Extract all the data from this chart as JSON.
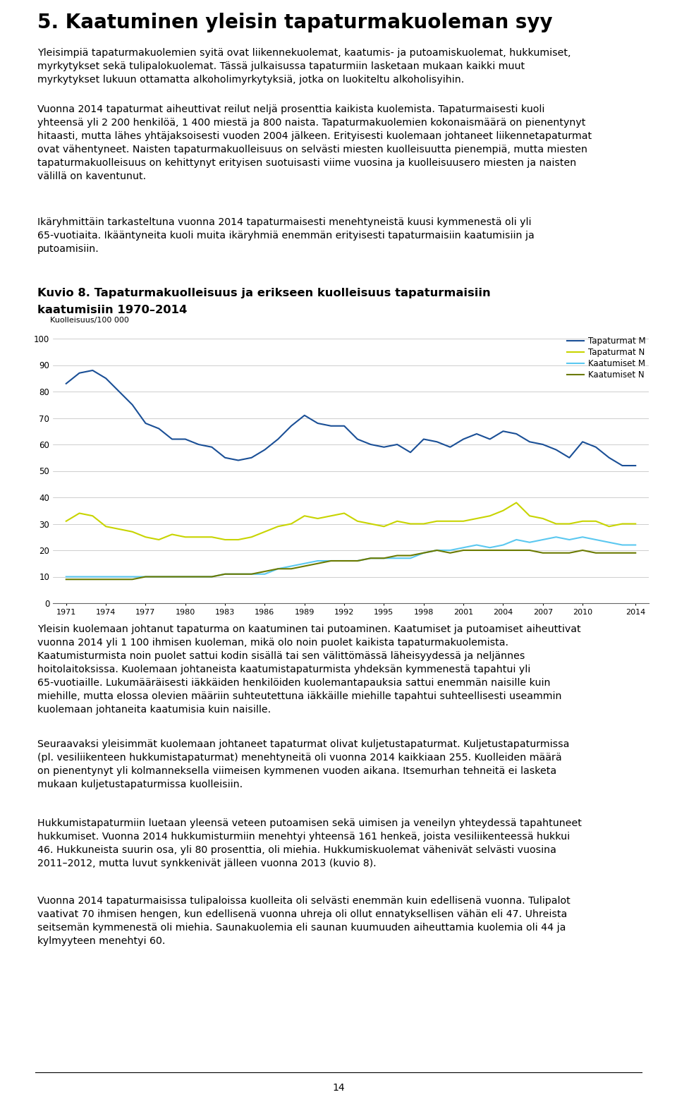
{
  "title_heading": "5. Kaatuminen yleisin tapaturmakuoleman syy",
  "para1": "Yleisimpiä tapaturmakuolemien syitä ovat liikennekuolemat, kaatumis- ja putoamiskuolemat, hukkumiset,\nmyrkytykset sekä tulipalokuolemat. Tässä julkaisussa tapaturmiin lasketaan mukaan kaikki muut\nmyrkytykset lukuun ottamatta alkoholimyrkytyksiä, jotka on luokiteltu alkoholisyihin.",
  "para2": "Vuonna 2014 tapaturmat aiheuttivat reilut neljä prosenttia kaikista kuolemista. Tapaturmaisesti kuoli\nyhteensä yli 2 200 henkilöä, 1 400 miestä ja 800 naista. Tapaturmakuolemien kokonaismäärä on pienentynyt\nhitaasti, mutta lähes yhtäjaksoisesti vuoden 2004 jälkeen. Erityisesti kuolemaan johtaneet liikennetapaturmat\novat vähentyneet. Naisten tapaturmakuolleisuus on selvästi miesten kuolleisuutta pienempiä, mutta miesten\ntapaturmakuolleisuus on kehittynyt erityisen suotuisasti viime vuosina ja kuolleisuusero miesten ja naisten\nvälillä on kaventunut.",
  "para3": "Ikäryhmittäin tarkasteltuna vuonna 2014 tapaturmaisesti menehtyneistä kuusi kymmenestä oli yli\n65-vuotiaita. Ikääntyneita kuoli muita ikäryhmiä enemmän erityisesti tapaturmaisiin kaatumisiin ja\nputoamisiin.",
  "fig_title_line1": "Kuvio 8. Tapaturmakuolleisuus ja erikseen kuolleisuus tapaturmaisiin",
  "fig_title_line2": "kaatumisiin 1970–2014",
  "ylabel": "Kuolleisuus/100 000",
  "yticks": [
    0,
    10,
    20,
    30,
    40,
    50,
    60,
    70,
    80,
    90,
    100
  ],
  "years": [
    1971,
    1972,
    1973,
    1974,
    1975,
    1976,
    1977,
    1978,
    1979,
    1980,
    1981,
    1982,
    1983,
    1984,
    1985,
    1986,
    1987,
    1988,
    1989,
    1990,
    1991,
    1992,
    1993,
    1994,
    1995,
    1996,
    1997,
    1998,
    1999,
    2000,
    2001,
    2002,
    2003,
    2004,
    2005,
    2006,
    2007,
    2008,
    2009,
    2010,
    2011,
    2012,
    2013,
    2014
  ],
  "tapaturmat_M": [
    83,
    87,
    88,
    85,
    80,
    75,
    68,
    66,
    62,
    62,
    60,
    59,
    55,
    54,
    55,
    58,
    62,
    67,
    71,
    68,
    67,
    67,
    62,
    60,
    59,
    60,
    57,
    62,
    61,
    59,
    62,
    64,
    62,
    65,
    64,
    61,
    60,
    58,
    55,
    61,
    59,
    55,
    52,
    52
  ],
  "tapaturmat_N": [
    31,
    34,
    33,
    29,
    28,
    27,
    25,
    24,
    26,
    25,
    25,
    25,
    24,
    24,
    25,
    27,
    29,
    30,
    33,
    32,
    33,
    34,
    31,
    30,
    29,
    31,
    30,
    30,
    31,
    31,
    31,
    32,
    33,
    35,
    38,
    33,
    32,
    30,
    30,
    31,
    31,
    29,
    30,
    30
  ],
  "kaatumiset_M": [
    10,
    10,
    10,
    10,
    10,
    10,
    10,
    10,
    10,
    10,
    10,
    10,
    11,
    11,
    11,
    11,
    13,
    14,
    15,
    16,
    16,
    16,
    16,
    17,
    17,
    17,
    17,
    19,
    20,
    20,
    21,
    22,
    21,
    22,
    24,
    23,
    24,
    25,
    24,
    25,
    24,
    23,
    22,
    22
  ],
  "kaatumiset_N": [
    9,
    9,
    9,
    9,
    9,
    9,
    10,
    10,
    10,
    10,
    10,
    10,
    11,
    11,
    11,
    12,
    13,
    13,
    14,
    15,
    16,
    16,
    16,
    17,
    17,
    18,
    18,
    19,
    20,
    19,
    20,
    20,
    20,
    20,
    20,
    20,
    19,
    19,
    19,
    20,
    19,
    19,
    19,
    19
  ],
  "color_tapaturmat_M": "#1a4f96",
  "color_tapaturmat_N": "#c8d400",
  "color_kaatumiset_M": "#5bc8f0",
  "color_kaatumiset_N": "#6b7a00",
  "xtick_labels": [
    "1971",
    "1974",
    "1977",
    "1980",
    "1983",
    "1986",
    "1989",
    "1992",
    "1995",
    "1998",
    "2001",
    "2004",
    "2007",
    "2010",
    "2014"
  ],
  "xtick_positions": [
    1971,
    1974,
    1977,
    1980,
    1983,
    1986,
    1989,
    1992,
    1995,
    1998,
    2001,
    2004,
    2007,
    2010,
    2014
  ],
  "para4": "Yleisin kuolemaan johtanut tapaturma on kaatuminen tai putoaminen. Kaatumiset ja putoamiset aiheuttivat\nvuonna 2014 yli 1 100 ihmisen kuoleman, mikä olo noin puolet kaikista tapaturmakuolemista.\nKaatumisturmista noin puolet sattui kodin sisällä tai sen välittömässä läheisyydessä ja neljännes\nhoitolaitoksissa. Kuolemaan johtaneista kaatumistapaturmista yhdeksän kymmenestä tapahtui yli\n65-vuotiaille. Lukumääräisesti iäkkäiden henkilöiden kuolemantapauksia sattui enemmän naisille kuin\nmiehille, mutta elossa olevien määriin suhteutettuna iäkkäille miehille tapahtui suhteellisesti useammin\nkuolemaan johtaneita kaatumisia kuin naisille.",
  "para5": "Seuraavaksi yleisimmät kuolemaan johtaneet tapaturmat olivat kuljetustapaturmat. Kuljetustapaturmissa\n(pl. vesiliikenteen hukkumistapaturmat) menehtyneitä oli vuonna 2014 kaikkiaan 255. Kuolleiden määrä\non pienentynyt yli kolmanneksella viimeisen kymmenen vuoden aikana. Itsemurhan tehneitä ei lasketa\nmukaan kuljetustapaturmissa kuolleisiin.",
  "para6": "Hukkumistapaturmiin luetaan yleensä veteen putoamisen sekä uimisen ja veneilyn yhteydessä tapahtuneet\nhukkumiset. Vuonna 2014 hukkumisturmiin menehtyi yhteensä 161 henkeä, joista vesiliikenteessä hukkui\n46. Hukkuneista suurin osa, yli 80 prosenttia, oli miehia. Hukkumiskuolemat vähenivät selvästi vuosina\n2011–2012, mutta luvut synkkenivät jälleen vuonna 2013 (kuvio 8).",
  "para7": "Vuonna 2014 tapaturmaisissa tulipaloissa kuolleita oli selvästi enemmän kuin edellisenä vuonna. Tulipalot\nvaativat 70 ihmisen hengen, kun edellisenä vuonna uhreja oli ollut ennatyksellisen vähän eli 47. Uhreista\nseitsemän kymmenestä oli miehia. Saunakuolemia eli saunan kuumuuden aiheuttamia kuolemia oli 44 ja\nkylmyyteen menehtyi 60.",
  "page_number": "14"
}
